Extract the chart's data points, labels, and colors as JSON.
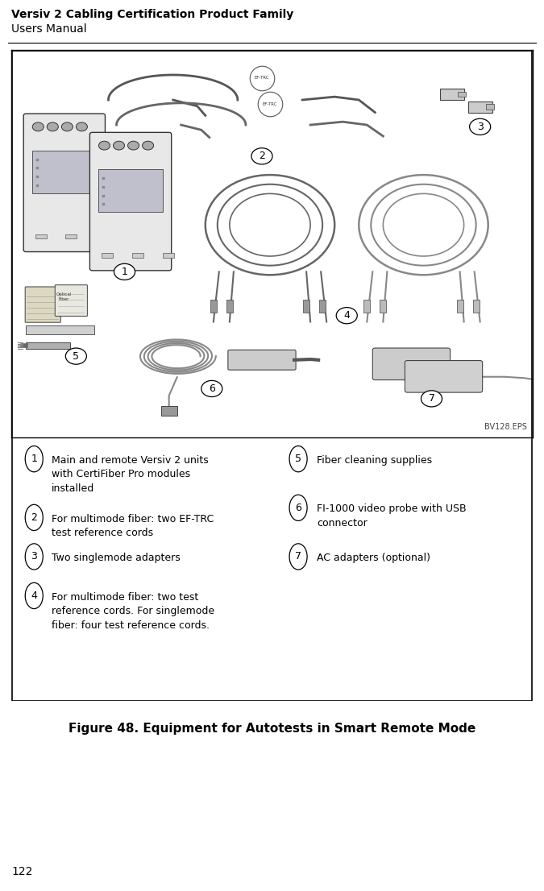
{
  "page_title_line1": "Versiv 2 Cabling Certification Product Family",
  "page_title_line2": "Users Manual",
  "page_number": "122",
  "figure_caption": "Figure 48. Equipment for Autotests in Smart Remote Mode",
  "eps_label": "BV128.EPS",
  "background_color": "#ffffff",
  "box_border_color": "#000000",
  "header_line_color": "#000000",
  "legend_items_left": [
    {
      "num": "1",
      "text": "Main and remote Versiv 2 units\nwith CertiFiber Pro modules\ninstalled"
    },
    {
      "num": "2",
      "text": "For multimode fiber: two EF-TRC\ntest reference cords"
    },
    {
      "num": "3",
      "text": "Two singlemode adapters"
    },
    {
      "num": "4",
      "text": "For multimode fiber: two test\nreference cords. For singlemode\nfiber: four test reference cords."
    }
  ],
  "legend_items_right": [
    {
      "num": "5",
      "text": "Fiber cleaning supplies"
    },
    {
      "num": "6",
      "text": "FI-1000 video probe with USB\nconnector"
    },
    {
      "num": "7",
      "text": "AC adapters (optional)"
    }
  ]
}
